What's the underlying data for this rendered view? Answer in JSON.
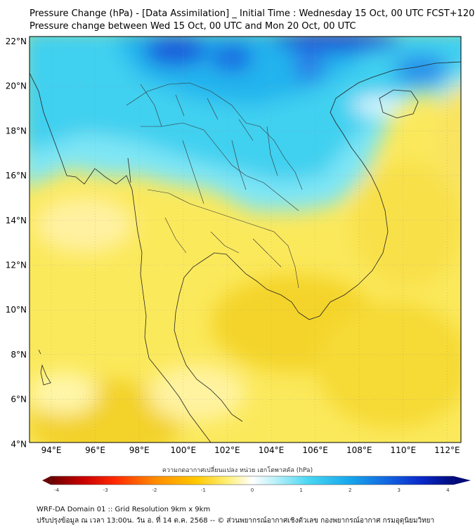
{
  "header": {
    "title_line1": "Pressure Change (hPa) - [Data Assimilation] _ Initial Time : Wednesday 15 Oct, 00 UTC FCST+120",
    "title_line2": "Pressure change between Wed 15 Oct, 00 UTC and Mon 20 Oct, 00 UTC"
  },
  "map": {
    "lat_labels": [
      "22°N",
      "20°N",
      "18°N",
      "16°N",
      "14°N",
      "12°N",
      "10°N",
      "8°N",
      "6°N",
      "4°N"
    ],
    "lon_labels": [
      "94°E",
      "96°E",
      "98°E",
      "100°E",
      "102°E",
      "104°E",
      "106°E",
      "108°E",
      "110°E",
      "112°E"
    ],
    "colors": {
      "positive_light": "#7fe6f5",
      "positive_mid": "#2ec6ee",
      "positive_strong": "#1565e0",
      "negative_light": "#fff59a",
      "negative_mid": "#f5dc2e",
      "coast": "#222222",
      "border": "#333333"
    }
  },
  "colorbar": {
    "title": "ความกดอากาศเปลี่ยนแปลง หน่วย เฮกโตพาสคัล (hPa)",
    "tick_labels": [
      "-4",
      "-3",
      "-2",
      "-1",
      "0",
      "1",
      "2",
      "3",
      "4"
    ],
    "min": -4,
    "max": 4
  },
  "footer": {
    "line1": "WRF-DA Domain 01 :: Grid Resolution 9km x 9km",
    "line2": "ปรับปรุงข้อมูล ณ เวลา 13:00น. วัน อ. ที่ 14 ต.ค. 2568 -- © ส่วนพยากรณ์อากาศเชิงตัวเลข กองพยากรณ์อากาศ กรมอุตุนิยมวิทยา"
  }
}
